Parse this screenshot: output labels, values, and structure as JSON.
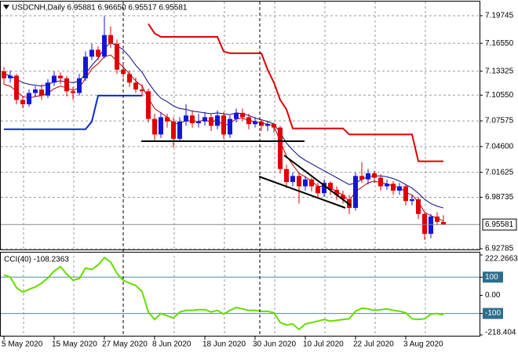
{
  "chart_data": [
    {
      "type": "candlestick",
      "title": "USDCNH,Daily  6.95881 6.96650 6.95517 6.95581",
      "categories": [
        "5 May 2020",
        null,
        null,
        null,
        null,
        null,
        null,
        null,
        "15 May 2020",
        null,
        null,
        null,
        null,
        null,
        null,
        null,
        "27 May 2020",
        null,
        null,
        null,
        null,
        null,
        null,
        null,
        "8 Jun 2020",
        null,
        null,
        null,
        null,
        null,
        null,
        null,
        "18 Jun 2020",
        null,
        null,
        null,
        null,
        null,
        null,
        null,
        "30 Jun 2020",
        null,
        null,
        null,
        null,
        null,
        null,
        null,
        "10 Jul 2020",
        null,
        null,
        null,
        null,
        null,
        null,
        null,
        "22 Jul 2020",
        null,
        null,
        null,
        null,
        null,
        null,
        null,
        "3 Aug 2020",
        null,
        null,
        null,
        null,
        null,
        null
      ],
      "ohlc": [
        [
          7.133,
          7.138,
          7.118,
          7.125
        ],
        [
          7.125,
          7.134,
          7.12,
          7.128
        ],
        [
          7.128,
          7.13,
          7.095,
          7.1
        ],
        [
          7.1,
          7.104,
          7.09,
          7.095
        ],
        [
          7.095,
          7.112,
          7.092,
          7.108
        ],
        [
          7.108,
          7.116,
          7.103,
          7.112
        ],
        [
          7.112,
          7.118,
          7.1,
          7.105
        ],
        [
          7.105,
          7.124,
          7.102,
          7.12
        ],
        [
          7.12,
          7.133,
          7.116,
          7.128
        ],
        [
          7.128,
          7.132,
          7.118,
          7.125
        ],
        [
          7.125,
          7.128,
          7.104,
          7.11
        ],
        [
          7.11,
          7.115,
          7.1,
          7.108
        ],
        [
          7.108,
          7.13,
          7.105,
          7.125
        ],
        [
          7.125,
          7.156,
          7.122,
          7.15
        ],
        [
          7.15,
          7.165,
          7.146,
          7.158
        ],
        [
          7.158,
          7.162,
          7.146,
          7.15
        ],
        [
          7.15,
          7.197,
          7.148,
          7.175
        ],
        [
          7.175,
          7.185,
          7.16,
          7.165
        ],
        [
          7.165,
          7.17,
          7.13,
          7.135
        ],
        [
          7.135,
          7.142,
          7.126,
          7.13
        ],
        [
          7.13,
          7.134,
          7.115,
          7.12
        ],
        [
          7.12,
          7.126,
          7.108,
          7.112
        ],
        [
          7.112,
          7.118,
          7.104,
          7.11
        ],
        [
          7.11,
          7.113,
          7.074,
          7.078
        ],
        [
          7.078,
          7.084,
          7.052,
          7.06
        ],
        [
          7.06,
          7.086,
          7.056,
          7.08
        ],
        [
          7.08,
          7.084,
          7.068,
          7.075
        ],
        [
          7.075,
          7.08,
          7.045,
          7.055
        ],
        [
          7.055,
          7.08,
          7.052,
          7.075
        ],
        [
          7.075,
          7.095,
          7.07,
          7.082
        ],
        [
          7.082,
          7.088,
          7.068,
          7.073
        ],
        [
          7.073,
          7.084,
          7.068,
          7.075
        ],
        [
          7.075,
          7.086,
          7.07,
          7.08
        ],
        [
          7.08,
          7.084,
          7.064,
          7.07
        ],
        [
          7.07,
          7.088,
          7.066,
          7.082
        ],
        [
          7.082,
          7.086,
          7.055,
          7.06
        ],
        [
          7.06,
          7.082,
          7.056,
          7.078
        ],
        [
          7.078,
          7.09,
          7.074,
          7.085
        ],
        [
          7.085,
          7.09,
          7.076,
          7.08
        ],
        [
          7.08,
          7.084,
          7.066,
          7.072
        ],
        [
          7.072,
          7.08,
          7.068,
          7.075
        ],
        [
          7.075,
          7.078,
          7.064,
          7.07
        ],
        [
          7.07,
          7.076,
          7.064,
          7.072
        ],
        [
          7.072,
          7.074,
          7.062,
          7.068
        ],
        [
          7.068,
          7.07,
          7.015,
          7.02
        ],
        [
          7.02,
          7.025,
          6.998,
          7.005
        ],
        [
          7.005,
          7.016,
          7.0,
          7.012
        ],
        [
          7.012,
          7.015,
          6.98,
          7.0
        ],
        [
          7.0,
          7.012,
          6.995,
          7.008
        ],
        [
          7.008,
          7.01,
          6.994,
          7.0
        ],
        [
          7.0,
          7.004,
          6.986,
          6.992
        ],
        [
          6.992,
          7.008,
          6.988,
          7.004
        ],
        [
          7.004,
          7.006,
          6.99,
          6.996
        ],
        [
          6.996,
          7.0,
          6.984,
          6.99
        ],
        [
          6.99,
          6.995,
          6.98,
          6.985
        ],
        [
          6.985,
          6.99,
          6.968,
          6.975
        ],
        [
          6.975,
          7.016,
          6.972,
          7.012
        ],
        [
          7.012,
          7.028,
          7.004,
          7.008
        ],
        [
          7.008,
          7.02,
          7.002,
          7.015
        ],
        [
          7.015,
          7.018,
          7.004,
          7.01
        ],
        [
          7.01,
          7.014,
          6.995,
          7.0
        ],
        [
          7.0,
          7.008,
          6.996,
          7.003
        ],
        [
          7.003,
          7.006,
          6.99,
          6.995
        ],
        [
          6.995,
          7.004,
          6.99,
          7.0
        ],
        [
          7.0,
          7.002,
          6.978,
          6.983
        ],
        [
          6.983,
          6.99,
          6.978,
          6.985
        ],
        [
          6.985,
          6.988,
          6.962,
          6.968
        ],
        [
          6.968,
          6.97,
          6.938,
          6.945
        ],
        [
          6.945,
          6.968,
          6.94,
          6.965
        ],
        [
          6.965,
          6.97,
          6.955,
          6.95881
        ],
        [
          6.95881,
          6.9665,
          6.95517,
          6.95581
        ]
      ],
      "bull_color": "#1515d8",
      "bear_color": "#e00000",
      "lines": [
        {
          "color": "#0a0a80",
          "width": 1,
          "values": [
            7.13,
            7.128,
            7.124,
            7.12,
            7.118,
            7.117,
            7.116,
            7.118,
            7.121,
            7.122,
            7.121,
            7.12,
            7.122,
            7.13,
            7.14,
            7.148,
            7.16,
            7.166,
            7.163,
            7.158,
            7.15,
            7.14,
            7.132,
            7.12,
            7.11,
            7.102,
            7.098,
            7.093,
            7.09,
            7.089,
            7.087,
            7.086,
            7.085,
            7.084,
            7.085,
            7.084,
            7.083,
            7.085,
            7.084,
            7.082,
            7.079,
            7.077,
            7.075,
            7.072,
            7.062,
            7.05,
            7.042,
            7.035,
            7.03,
            7.026,
            7.022,
            7.018,
            7.014,
            7.01,
            7.006,
            7.002,
            7.004,
            7.008,
            7.011,
            7.012,
            7.012,
            7.011,
            7.009,
            7.006,
            7.002,
            6.998,
            6.992,
            6.985,
            6.98,
            6.977,
            6.975
          ]
        },
        {
          "color": "#b00000",
          "width": 1,
          "values": [
            7.118,
            7.116,
            7.11,
            7.104,
            7.102,
            7.104,
            7.105,
            7.108,
            7.113,
            7.116,
            7.114,
            7.111,
            7.114,
            7.125,
            7.136,
            7.142,
            7.15,
            7.152,
            7.145,
            7.138,
            7.13,
            7.122,
            7.116,
            7.102,
            7.09,
            7.085,
            7.08,
            7.072,
            7.073,
            7.076,
            7.075,
            7.075,
            7.077,
            7.074,
            7.077,
            7.07,
            7.073,
            7.078,
            7.079,
            7.076,
            7.075,
            7.073,
            7.072,
            7.07,
            7.052,
            7.035,
            7.025,
            7.015,
            7.011,
            7.006,
            7.0,
            7.0,
            6.998,
            6.994,
            6.99,
            6.983,
            6.994,
            6.999,
            7.004,
            7.006,
            7.004,
            7.003,
            7.0,
            6.999,
            6.993,
            6.99,
            6.982,
            6.97,
            6.966,
            6.963,
            6.96
          ]
        },
        {
          "color": "#e00000",
          "width": 2,
          "values": [
            null,
            null,
            null,
            null,
            null,
            null,
            null,
            null,
            null,
            null,
            null,
            null,
            null,
            null,
            null,
            null,
            null,
            null,
            null,
            null,
            null,
            null,
            null,
            7.188,
            7.177,
            7.173,
            7.173,
            7.173,
            7.173,
            7.173,
            7.173,
            7.173,
            7.173,
            7.173,
            7.173,
            7.156,
            7.154,
            7.154,
            7.154,
            7.154,
            7.154,
            7.154,
            7.135,
            7.12,
            7.1,
            7.089,
            7.067,
            7.067,
            7.067,
            7.067,
            7.067,
            7.067,
            7.067,
            7.067,
            7.067,
            7.06,
            7.06,
            7.06,
            7.06,
            7.06,
            7.06,
            7.06,
            7.06,
            7.06,
            7.06,
            7.06,
            7.029,
            7.029,
            7.029,
            7.029,
            7.029
          ]
        },
        {
          "color": "#0a2ad8",
          "width": 2,
          "values": [
            7.066,
            7.066,
            7.066,
            7.066,
            7.066,
            7.066,
            7.066,
            7.066,
            7.066,
            7.066,
            7.066,
            7.066,
            7.066,
            7.066,
            7.075,
            7.105,
            7.105,
            7.105,
            7.105,
            7.105,
            7.105,
            7.105,
            7.105,
            null,
            null,
            null,
            null,
            null,
            null,
            null,
            null,
            null,
            null,
            null,
            null,
            null,
            null,
            null,
            null,
            null,
            null,
            null,
            null,
            null,
            null,
            null,
            null,
            null,
            null,
            null,
            null,
            null,
            null,
            null,
            null,
            null,
            null,
            null,
            null,
            null,
            null,
            null,
            null,
            null,
            null,
            null,
            null,
            null,
            null,
            null,
            null
          ]
        }
      ],
      "price_line": 6.95581,
      "ylim": [
        6.92694,
        7.21379
      ],
      "yticks": [
        7.19745,
        {
          "value": 7.1655,
          "label": "7.16550"
        },
        7.13325,
        {
          "value": 7.1055,
          "label": "7.10550"
        },
        7.07575,
        {
          "value": 7.046,
          "label": "7.04600"
        },
        7.01625,
        6.98735,
        6.92785
      ],
      "grid": true
    },
    {
      "type": "line",
      "title": "CCI(40) -108.2363",
      "color": "#66dd00",
      "values": [
        112,
        100,
        42,
        17,
        33,
        46,
        67,
        96,
        133,
        158,
        117,
        83,
        92,
        150,
        142,
        167,
        208,
        183,
        121,
        83,
        67,
        54,
        21,
        -92,
        -133,
        -100,
        -113,
        -125,
        -92,
        -83,
        -83,
        -79,
        -79,
        -92,
        -83,
        -104,
        -83,
        -67,
        -75,
        -83,
        -83,
        -88,
        -88,
        -96,
        -150,
        -163,
        -158,
        -188,
        -158,
        -150,
        -142,
        -133,
        -142,
        -138,
        -133,
        -129,
        -88,
        -71,
        -75,
        -83,
        -79,
        -75,
        -83,
        -88,
        -96,
        -129,
        -133,
        -129,
        -104,
        -100,
        -108.2363
      ],
      "levels": [
        100,
        -100
      ],
      "ylim": [
        -218.404,
        222.2663
      ],
      "yticks": [
        222.2663,
        100,
        {
          "value": 0,
          "label": "0.00"
        },
        -100,
        -218.404
      ]
    }
  ]
}
